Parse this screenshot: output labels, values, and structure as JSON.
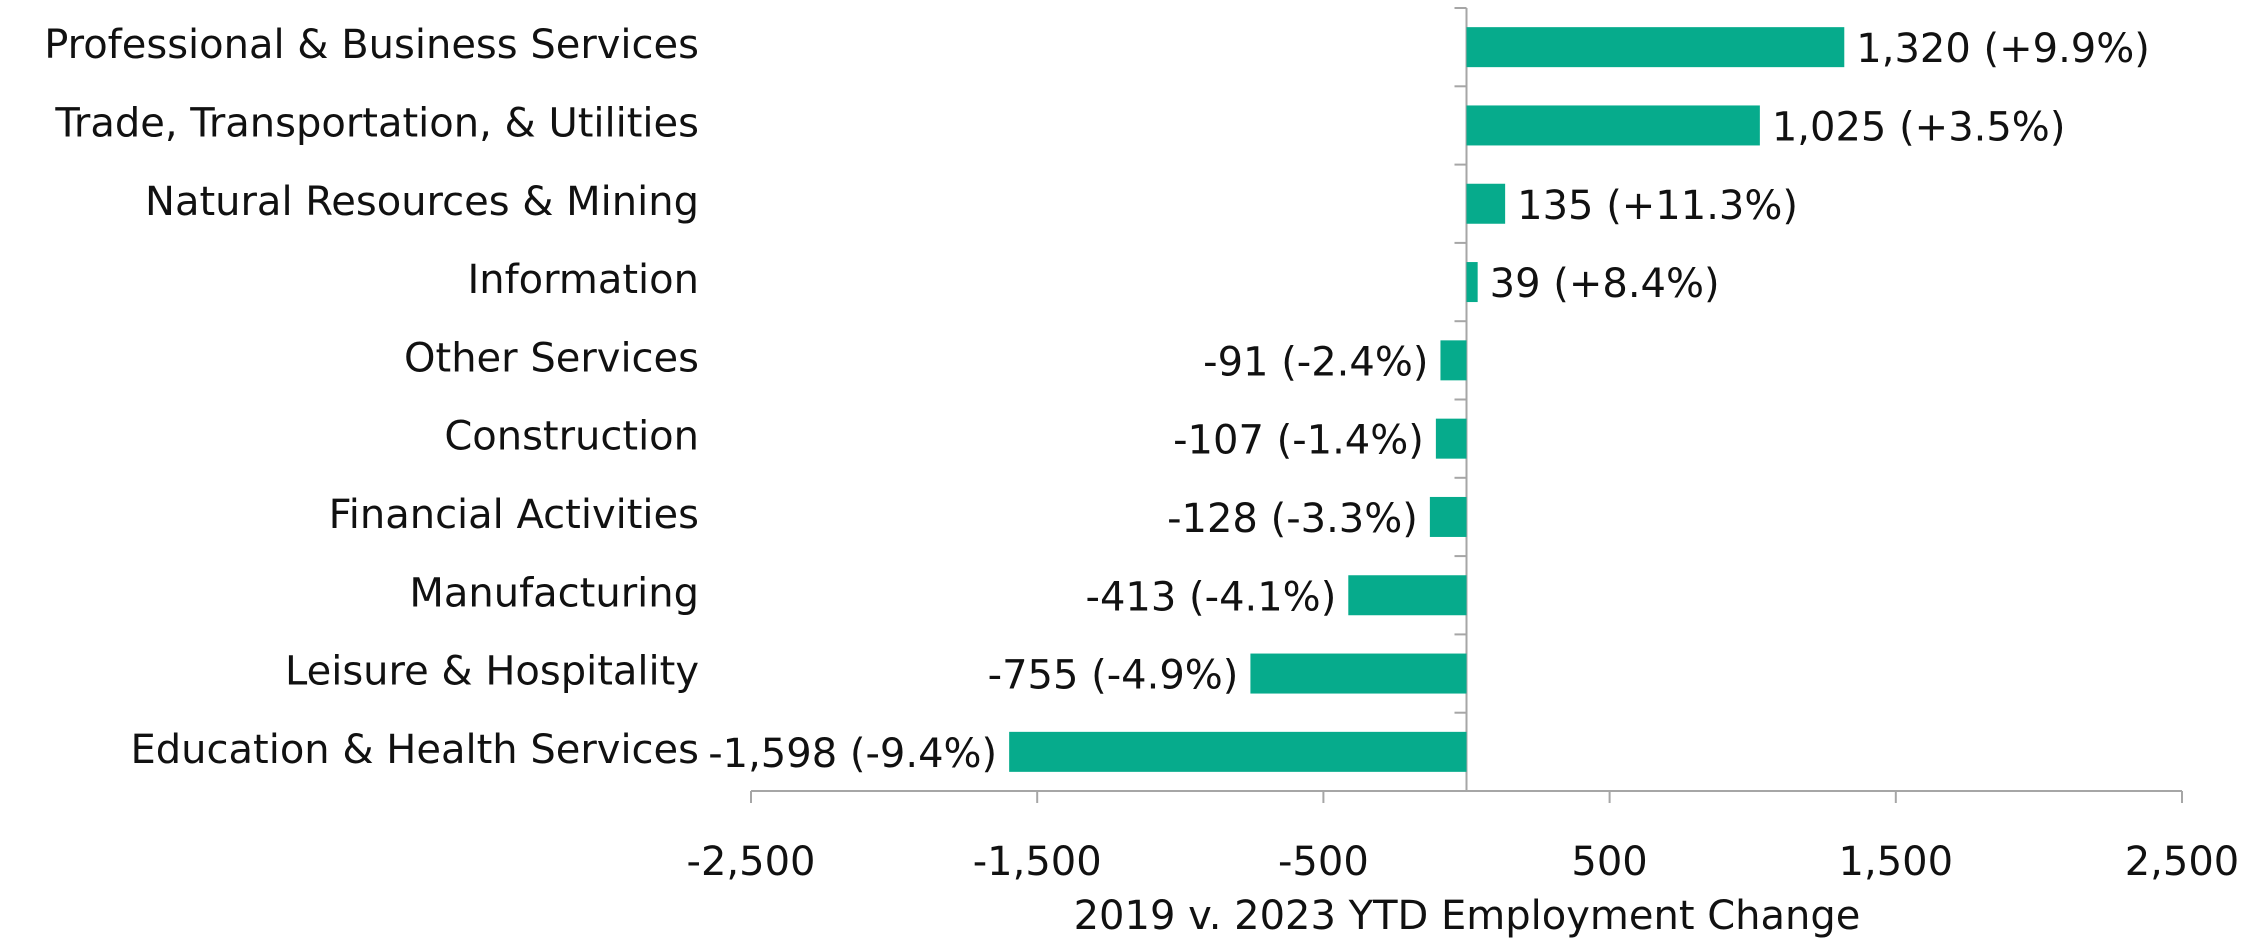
{
  "chart_data": {
    "type": "bar",
    "orientation": "horizontal",
    "x_label": "2019 v. 2023 YTD Employment Change",
    "categories": [
      "Professional & Business Services",
      "Trade, Transportation, & Utilities",
      "Natural Resources & Mining",
      "Information",
      "Other Services",
      "Construction",
      "Financial Activities",
      "Manufacturing",
      "Leisure & Hospitality",
      "Education & Health Services"
    ],
    "values": [
      1320,
      1025,
      135,
      39,
      -91,
      -107,
      -128,
      -413,
      -755,
      -1598
    ],
    "value_labels": [
      "1,320 (+9.9%)",
      "1,025 (+3.5%)",
      "135 (+11.3%)",
      "39 (+8.4%)",
      "-91 (-2.4%)",
      "-107 (-1.4%)",
      "-128 (-3.3%)",
      "-413 (-4.1%)",
      "-755 (-4.9%)",
      "-1,598 (-9.4%)"
    ],
    "color": "#06ab8c",
    "xlim": [
      -2500,
      2500
    ],
    "xticks": [
      {
        "value": -2500,
        "label": "-2,500"
      },
      {
        "value": -1500,
        "label": "-1,500"
      },
      {
        "value": -500,
        "label": "-500"
      },
      500,
      {
        "value": 1500,
        "label": "1,500"
      },
      {
        "value": 2500,
        "label": "2,500"
      }
    ],
    "grid": false
  }
}
